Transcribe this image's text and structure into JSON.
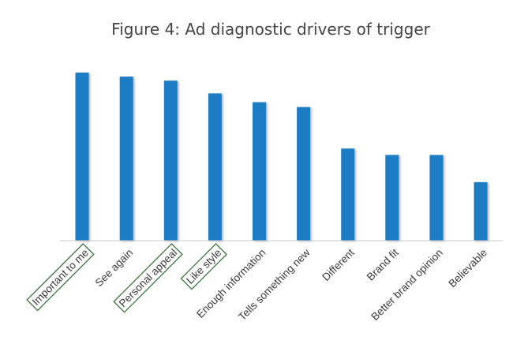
{
  "chart_data": {
    "type": "bar",
    "title": "Figure 4: Ad diagnostic drivers of trigger",
    "xlabel": "",
    "ylabel": "",
    "categories": [
      "Important to me",
      "See again",
      "Personal appeal",
      "Like style",
      "Enough information",
      "Tells something new",
      "Different",
      "Brand fit",
      "Better brand opinion",
      "Believable"
    ],
    "values": [
      100,
      97.6,
      95.2,
      87.6,
      82.4,
      79.5,
      54.8,
      51.0,
      51.0,
      34.8
    ],
    "highlighted_categories": [
      "Important to me",
      "Personal appeal",
      "Like style"
    ],
    "ylim": [
      0,
      100
    ],
    "grid": false,
    "legend": "none",
    "colors": {
      "bar": "#1F7BC4",
      "bar_shadow": "#b8b8b8",
      "axis": "#c8c8c8",
      "highlight_box": "#2e6b2e",
      "text": "#3a3a3a"
    }
  }
}
